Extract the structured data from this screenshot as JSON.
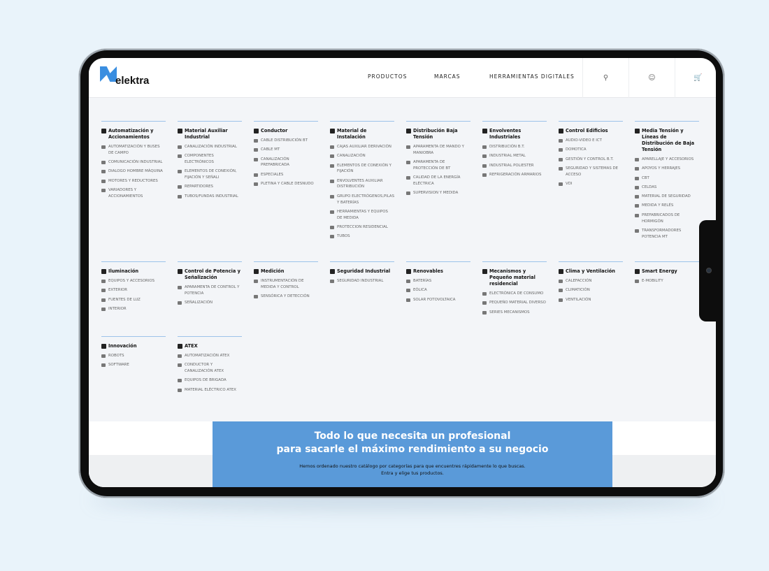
{
  "header": {
    "logo": "elektra",
    "nav": [
      "PRODUCTOS",
      "MARCAS",
      "HERRAMIENTAS DIGITALES"
    ],
    "icons": [
      "search-icon",
      "user-icon",
      "cart-icon"
    ]
  },
  "categories": [
    {
      "title": "Automatización y Accionamientos",
      "items": [
        "AUTOMATIZACIÓN Y BUSES DE CAMPO",
        "COMUNICACIÓN INDUSTRIAL",
        "DIALOGO HOMBRE MÁQUINA",
        "MOTORES Y REDUCTORES",
        "VARIADORES Y ACCIONAMIENTOS"
      ]
    },
    {
      "title": "Material Auxiliar Industrial",
      "items": [
        "CANALIZACIÓN INDUSTRIAL",
        "COMPONENTES ELECTRÓNICOS",
        "ELEMENTOS DE CONEXIÓN, FIJACIÓN Y SEÑALI",
        "REPARTIDORES",
        "TUBOS/FUNDAS INDUSTRIAL"
      ]
    },
    {
      "title": "Conductor",
      "items": [
        "CABLE DISTRIBUCIÓN BT",
        "CABLE MT",
        "CANALIZACIÓN PREFABRICADA",
        "ESPECIALES",
        "PLETINA Y CABLE DESNUDO"
      ]
    },
    {
      "title": "Material de Instalación",
      "items": [
        "CAJAS AUXILIAR DERIVACIÓN",
        "CANALIZACIÓN",
        "ELEMENTOS DE CONEXIÓN Y FIJACIÓN",
        "ENVOLVENTES AUXILIAR DISTRIBUCIÓN",
        "GRUPO ELECTRÓGENOS,PILAS Y BATERÍAS",
        "HERRAMIENTAS Y EQUIPOS DE MEDIDA",
        "PROTECCION RESIDENCIAL",
        "TUBOS"
      ]
    },
    {
      "title": "Distribución Baja Tensión",
      "items": [
        "APARAMENTA DE MANDO Y MANIOBRA",
        "APARAMENTA DE PROTECCIÓN DE BT",
        "CALIDAD DE LA ENERGÍA ELÉCTRICA",
        "SUPERVISION Y MEDIDA"
      ]
    },
    {
      "title": "Envolventes Industriales",
      "items": [
        "DISTRIBUCIÓN B.T.",
        "INDUSTRIAL METAL",
        "INDUSTRIAL POLIESTER",
        "REFRIGERACIÓN ARMARIOS"
      ]
    },
    {
      "title": "Control Edificios",
      "items": [
        "AUDIO-VIDEO E ICT",
        "DOMOTICA",
        "GESTIÓN Y CONTROL B.T.",
        "SEGURIDAD Y SISTEMAS DE ACCESO",
        "VDI"
      ]
    },
    {
      "title": "Media Tensión y Líneas de Distribución de Baja Tensión",
      "items": [
        "APARELLAJE Y ACCESORIOS",
        "APOYOS Y HERRAJES",
        "CBT",
        "CELDAS",
        "MATERIAL DE SEGURIDAD",
        "MEDIDA Y RELÉS",
        "PREFABRICADOS DE HORMIGÓN",
        "TRANSFORMADORES POTENCIA MT"
      ]
    },
    {
      "title": "Iluminación",
      "items": [
        "EQUIPOS Y ACCESORIOS",
        "EXTERIOR",
        "FUENTES DE LUZ",
        "INTERIOR"
      ]
    },
    {
      "title": "Control de Potencia y Señalización",
      "items": [
        "APARAMENTA DE CONTROL Y POTENCIA",
        "SEÑALIZACIÓN"
      ]
    },
    {
      "title": "Medición",
      "items": [
        "INSTRUMENTACIÓN DE MEDIDA Y CONTROL",
        "SENSÓRICA Y DETECCIÓN"
      ]
    },
    {
      "title": "Seguridad Industrial",
      "items": [
        "SEGURIDAD INDUSTRIAL"
      ]
    },
    {
      "title": "Renovables",
      "items": [
        "BATERÍAS",
        "EÓLICA",
        "SOLAR FOTOVOLTAICA"
      ]
    },
    {
      "title": "Mecanismos y Pequeño material residencial",
      "items": [
        "ELECTRÓNICA DE CONSUMO",
        "PEQUEÑO MATERIAL DIVERSO",
        "SERIES MECANISMOS"
      ]
    },
    {
      "title": "Clima y Ventilación",
      "items": [
        "CALEFACCIÓN",
        "CLIMATICIÓN",
        "VENTILACIÓN"
      ]
    },
    {
      "title": "Smart Energy",
      "items": [
        "e-MOBILITY"
      ]
    },
    {
      "title": "Innovación",
      "items": [
        "ROBOTS",
        "SOFTWARE"
      ]
    },
    {
      "title": "ATEX",
      "items": [
        "AUTOMATIZACIÓN ATEX",
        "CONDUCTOR Y CANALIZACIÓN ATEX",
        "EQUIPOS DE BRIGADA",
        "MATERIAL ELÉCTRICO ATEX"
      ]
    }
  ],
  "banner": {
    "title1": "Todo lo que necesita un profesional",
    "title2": "para sacarle el máximo rendimiento a su negocio",
    "text1": "Hemos ordenado nuestro catálogo por categorías para que encuentres rápidamente lo que buscas.",
    "text2": "Entra y elige tus productos."
  },
  "colors": {
    "accent": "#5a9ad9",
    "background": "#e9f3fa"
  }
}
